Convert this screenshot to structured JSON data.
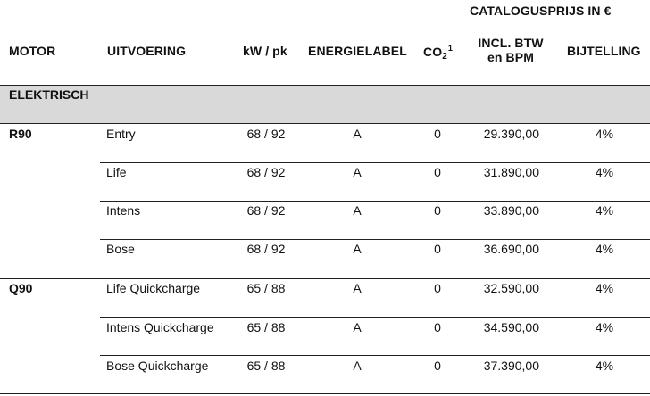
{
  "header": {
    "catalog_title": "CATALOGUSPRIJS IN €",
    "motor": "MOTOR",
    "uitvoering": "UITVOERING",
    "kw_pk": "kW / pk",
    "energielabel": "ENERGIELABEL",
    "co2": "CO",
    "co2_sub": "2",
    "co2_sup": "1",
    "incl_line1": "INCL. BTW",
    "incl_line2": "en BPM",
    "bijtelling": "BIJTELLING"
  },
  "section": {
    "label": "ELEKTRISCH"
  },
  "rows": [
    {
      "motor": "R90",
      "uitvoering": "Entry",
      "kw_pk": "68 / 92",
      "energielabel": "A",
      "co2": "0",
      "prijs": "29.390,00",
      "bijtelling": "4%"
    },
    {
      "motor": "",
      "uitvoering": "Life",
      "kw_pk": "68 / 92",
      "energielabel": "A",
      "co2": "0",
      "prijs": "31.890,00",
      "bijtelling": "4%"
    },
    {
      "motor": "",
      "uitvoering": "Intens",
      "kw_pk": "68 / 92",
      "energielabel": "A",
      "co2": "0",
      "prijs": "33.890,00",
      "bijtelling": "4%"
    },
    {
      "motor": "",
      "uitvoering": "Bose",
      "kw_pk": "68 / 92",
      "energielabel": "A",
      "co2": "0",
      "prijs": "36.690,00",
      "bijtelling": "4%"
    },
    {
      "motor": "Q90",
      "uitvoering": "Life Quickcharge",
      "kw_pk": "65 / 88",
      "energielabel": "A",
      "co2": "0",
      "prijs": "32.590,00",
      "bijtelling": "4%"
    },
    {
      "motor": "",
      "uitvoering": "Intens Quickcharge",
      "kw_pk": "65 / 88",
      "energielabel": "A",
      "co2": "0",
      "prijs": "34.590,00",
      "bijtelling": "4%"
    },
    {
      "motor": "",
      "uitvoering": "Bose Quickcharge",
      "kw_pk": "65 / 88",
      "energielabel": "A",
      "co2": "0",
      "prijs": "37.390,00",
      "bijtelling": "4%"
    }
  ]
}
